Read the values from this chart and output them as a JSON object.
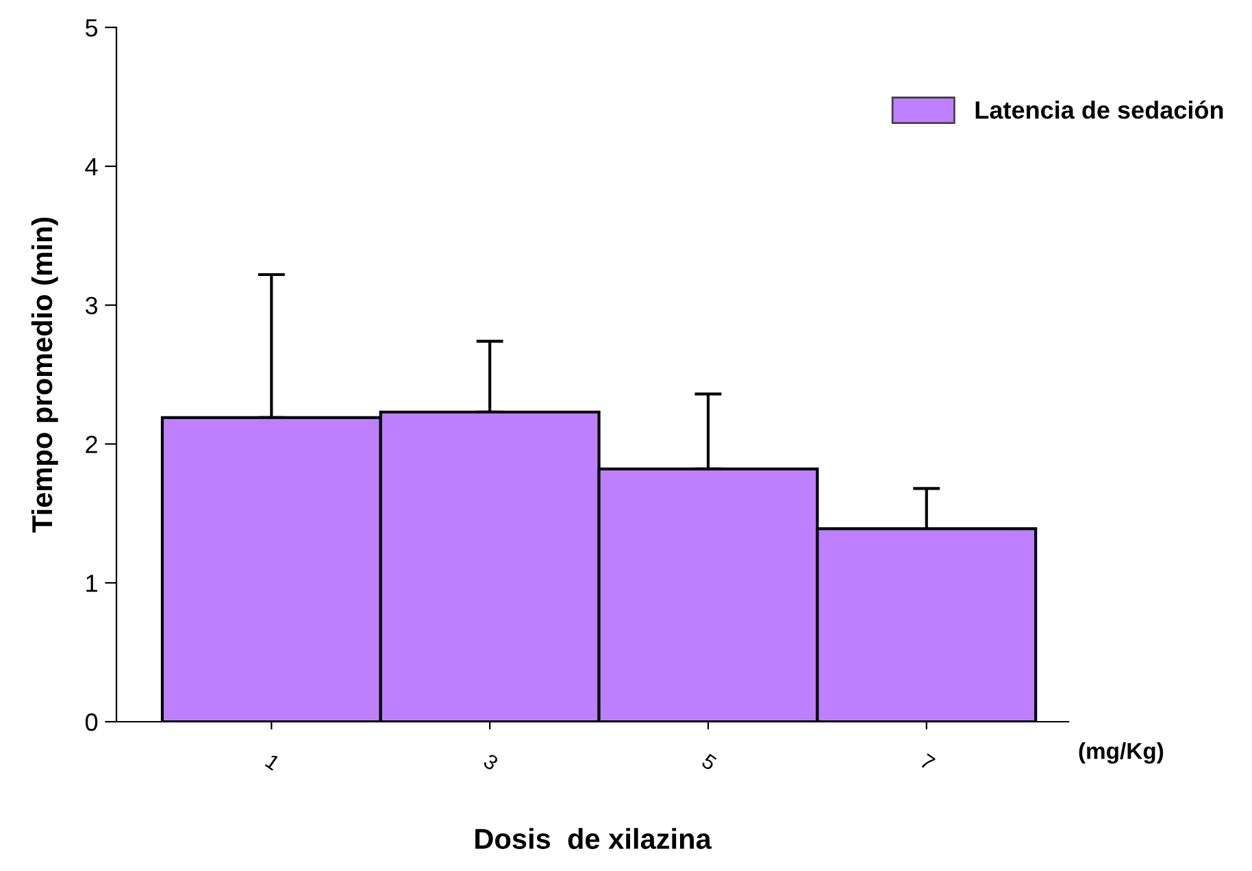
{
  "chart_data": {
    "type": "bar",
    "xlabel": "Dosis  de xilazina",
    "ylabel": "Tiempo promedio (min)",
    "categories": [
      "1",
      "3",
      "5",
      "7"
    ],
    "series": [
      {
        "name": "Latencia de sedación",
        "color": "#bf80ff",
        "values": [
          2.19,
          2.23,
          1.82,
          1.39
        ],
        "errors": [
          [
            2.19,
            3.22
          ],
          [
            2.23,
            2.74
          ],
          [
            1.82,
            2.36
          ],
          [
            1.39,
            1.68
          ]
        ]
      }
    ],
    "ylim": [
      0,
      5
    ],
    "yticks": [
      0,
      1,
      2,
      3,
      4,
      5
    ],
    "grid": false,
    "legend": "top right",
    "annotations": [
      "(mg/Kg)"
    ]
  }
}
